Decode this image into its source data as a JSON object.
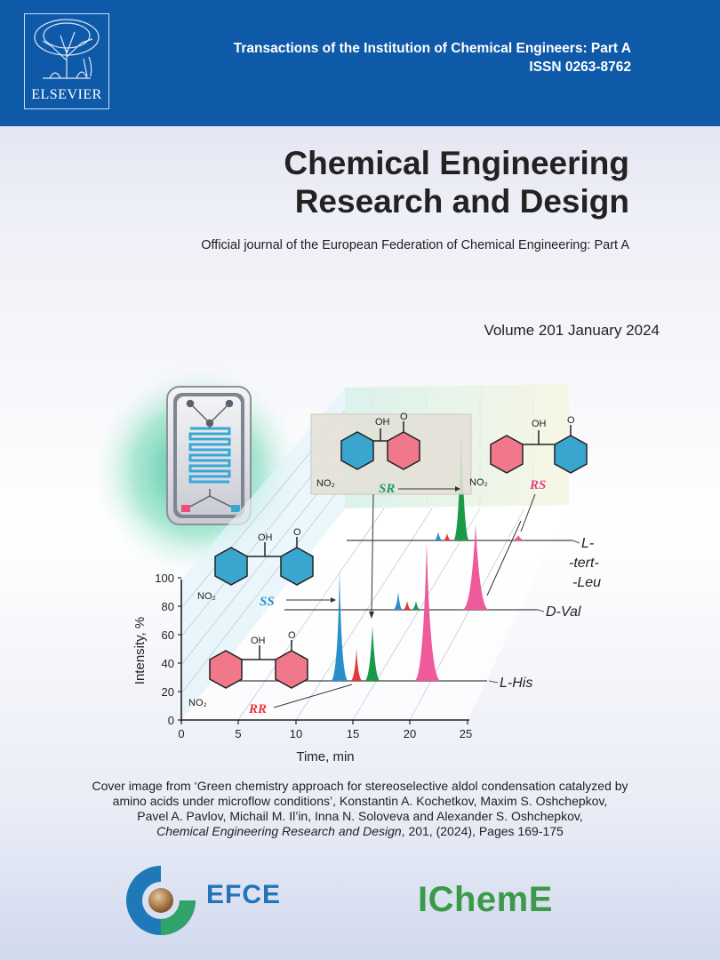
{
  "publisher": {
    "logo_text": "ELSEVIER"
  },
  "header": {
    "series_title": "Transactions of the Institution of Chemical Engineers: Part A",
    "issn": "ISSN 0263-8762"
  },
  "journal": {
    "title_line1": "Chemical Engineering",
    "title_line2": "Research and Design",
    "subtitle": "Official journal of the European Federation of Chemical Engineering: Part A",
    "volume": "Volume 201 January 2024"
  },
  "cover_figure": {
    "y_label": "Intensity, %",
    "x_label": "Time, min",
    "y_ticks": [
      "0",
      "20",
      "40",
      "60",
      "80",
      "100"
    ],
    "x_ticks": [
      "0",
      "5",
      "10",
      "15",
      "20",
      "25"
    ],
    "trace_labels": {
      "l_his": "L-His",
      "d_val": "D-Val",
      "l_tert_l1": "L-",
      "l_tert_l2": "-tert-",
      "l_tert_l3": "-Leu"
    },
    "isomers": {
      "sr": "SR",
      "rs": "RS",
      "ss": "SS",
      "rr": "RR"
    },
    "atoms": {
      "oh": "OH",
      "o": "O",
      "no2": "NO₂"
    },
    "colors": {
      "blue": "#2a8fc9",
      "red": "#e8353a",
      "green": "#1a9a48",
      "pink": "#ee5a9a",
      "pink_ring": "#f0788a",
      "cyan_ring": "#3aa6d0"
    }
  },
  "caption": {
    "line1": "Cover image from ‘Green chemistry approach for stereoselective aldol condensation catalyzed by",
    "line2": "amino acids under microflow conditions’, Konstantin A. Kochetkov, Maxim S. Oshchepkov,",
    "line3": "Pavel A. Pavlov, Michail M. Il’in, Inna N. Soloveva and Alexander S. Oshchepkov,",
    "line4_journal": "Chemical Engineering Research and Design",
    "line4_rest": ", 201, (2024), Pages 169-175"
  },
  "footer": {
    "efce": "EFCE",
    "icheme": "IChemE"
  }
}
